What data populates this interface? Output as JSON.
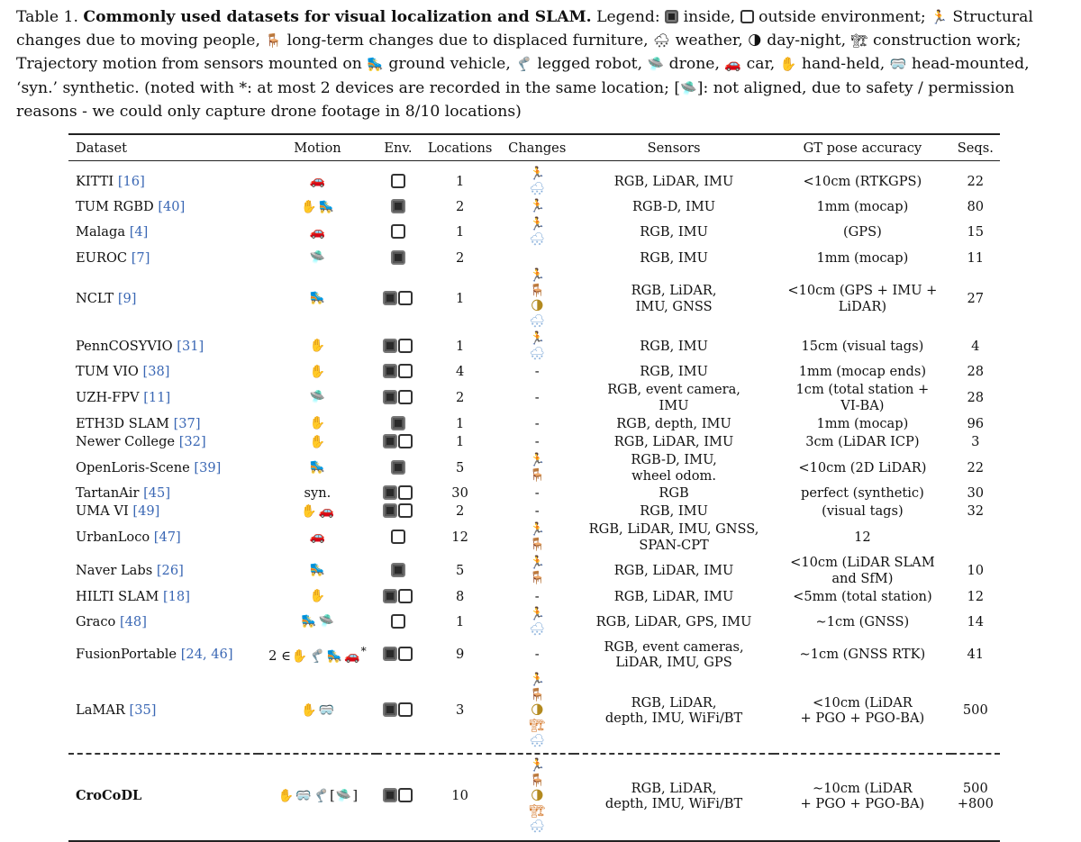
{
  "caption": {
    "label": "Table 1.",
    "title": "Commonly used datasets for visual localization and SLAM.",
    "legend_word": "Legend:",
    "inside": "inside,",
    "outside": "outside environment;",
    "people": "Structural changes due to moving people,",
    "furniture": "long-term changes due to displaced furniture,",
    "weather": "weather,",
    "daynight": "day-night,",
    "construction": "construction work; Trajectory motion from sensors mounted on",
    "vehicle": "ground vehicle,",
    "legged": "legged robot,",
    "drone": "drone,",
    "car": "car,",
    "handheld": "hand-held,",
    "headmounted": "head-mounted, ‘syn.’ synthetic. (noted with *: at most 2 devices are recorded in the same location; [",
    "tail": "]: not aligned, due to safety / permission reasons - we could only capture drone footage in 8/10 locations)"
  },
  "icons": {
    "car": "🚗",
    "hand": "✋",
    "vehicle": "🛼",
    "drone": "🛸",
    "legged": "🦿",
    "head": "🥽",
    "people": "🏃",
    "furniture": "🪑",
    "weather": "🌨",
    "daynight": "🌗",
    "construction": "🏗"
  },
  "headers": [
    "Dataset",
    "Motion",
    "Env.",
    "Locations",
    "Changes",
    "Sensors",
    "GT pose accuracy",
    "Seqs."
  ],
  "rows": [
    {
      "name": "KITTI",
      "ref": "[16]",
      "motion": "car",
      "env": "out",
      "loc": "1",
      "changes": "people weather",
      "sensors": [
        "RGB, LiDAR, IMU"
      ],
      "gt": [
        "<10cm (RTKGPS)"
      ],
      "seqs": [
        "22"
      ]
    },
    {
      "name": "TUM RGBD",
      "ref": "[40]",
      "motion": "hand vehicle",
      "env": "in",
      "loc": "2",
      "changes": "people",
      "sensors": [
        "RGB-D, IMU"
      ],
      "gt": [
        "1mm (mocap)"
      ],
      "seqs": [
        "80"
      ]
    },
    {
      "name": "Malaga",
      "ref": "[4]",
      "motion": "car",
      "env": "out",
      "loc": "1",
      "changes": "people weather",
      "sensors": [
        "RGB, IMU"
      ],
      "gt": [
        "(GPS)"
      ],
      "seqs": [
        "15"
      ]
    },
    {
      "name": "EUROC",
      "ref": "[7]",
      "motion": "drone",
      "env": "in",
      "loc": "2",
      "changes": "",
      "sensors": [
        "RGB, IMU"
      ],
      "gt": [
        "1mm (mocap)"
      ],
      "seqs": [
        "11"
      ]
    },
    {
      "name": "NCLT",
      "ref": "[9]",
      "motion": "vehicle",
      "env": "in out",
      "loc": "1",
      "changes": "people furniture daynight|weather",
      "sensors": [
        "RGB, LiDAR,",
        "IMU, GNSS"
      ],
      "gt": [
        "<10cm (GPS + IMU +",
        "LiDAR)"
      ],
      "seqs": [
        "27"
      ]
    },
    {
      "name": "PennCOSYVIO",
      "ref": "[31]",
      "motion": "hand",
      "env": "in out",
      "loc": "1",
      "changes": "people weather",
      "sensors": [
        "RGB, IMU"
      ],
      "gt": [
        "15cm (visual tags)"
      ],
      "seqs": [
        "4"
      ]
    },
    {
      "name": "TUM VIO",
      "ref": "[38]",
      "motion": "hand",
      "env": "in out",
      "loc": "4",
      "changes": "-",
      "sensors": [
        "RGB, IMU"
      ],
      "gt": [
        "1mm (mocap ends)"
      ],
      "seqs": [
        "28"
      ]
    },
    {
      "name": "UZH-FPV",
      "ref": "[11]",
      "motion": "drone",
      "env": "in out",
      "loc": "2",
      "changes": "-",
      "sensors": [
        "RGB, event camera,",
        "IMU"
      ],
      "gt": [
        "1cm (total station +",
        "VI-BA)"
      ],
      "seqs": [
        "28"
      ]
    },
    {
      "name": "ETH3D SLAM",
      "ref": "[37]",
      "motion": "hand",
      "env": "in",
      "loc": "1",
      "changes": "-",
      "sensors": [
        "RGB, depth, IMU"
      ],
      "gt": [
        "1mm (mocap)"
      ],
      "seqs": [
        "96"
      ]
    },
    {
      "name": "Newer College",
      "ref": "[32]",
      "motion": "hand",
      "env": "in out",
      "loc": "1",
      "changes": "-",
      "sensors": [
        "RGB, LiDAR, IMU"
      ],
      "gt": [
        "3cm (LiDAR ICP)"
      ],
      "seqs": [
        "3"
      ]
    },
    {
      "name": "OpenLoris-Scene",
      "ref": "[39]",
      "motion": "vehicle",
      "env": "in",
      "loc": "5",
      "changes": "people furniture",
      "sensors": [
        "RGB-D, IMU,",
        "wheel odom."
      ],
      "gt": [
        "<10cm (2D LiDAR)"
      ],
      "seqs": [
        "22"
      ]
    },
    {
      "name": "TartanAir",
      "ref": "[45]",
      "motion": "syn.",
      "env": "in out",
      "loc": "30",
      "changes": "-",
      "sensors": [
        "RGB"
      ],
      "gt": [
        "perfect (synthetic)"
      ],
      "seqs": [
        "30"
      ]
    },
    {
      "name": "UMA VI",
      "ref": "[49]",
      "motion": "hand car",
      "env": "in out",
      "loc": "2",
      "changes": "-",
      "sensors": [
        "RGB, IMU"
      ],
      "gt": [
        "(visual tags)"
      ],
      "seqs": [
        "32"
      ]
    },
    {
      "name": "UrbanLoco",
      "ref": "[47]",
      "motion": "car",
      "env": "out",
      "loc": "12",
      "changes": "people furniture",
      "sensors": [
        "RGB, LiDAR, IMU, GNSS,",
        "SPAN-CPT"
      ],
      "gt": [
        "12"
      ],
      "seqs": [
        ""
      ]
    },
    {
      "name": "Naver Labs",
      "ref": "[26]",
      "motion": "vehicle",
      "env": "in",
      "loc": "5",
      "changes": "people furniture",
      "sensors": [
        "RGB, LiDAR, IMU"
      ],
      "gt": [
        "<10cm (LiDAR SLAM",
        "and SfM)"
      ],
      "seqs": [
        "10"
      ]
    },
    {
      "name": "HILTI SLAM",
      "ref": "[18]",
      "motion": "hand",
      "env": "in out",
      "loc": "8",
      "changes": "-",
      "sensors": [
        "RGB, LiDAR, IMU"
      ],
      "gt": [
        "<5mm (total station)"
      ],
      "seqs": [
        "12"
      ]
    },
    {
      "name": "Graco",
      "ref": "[48]",
      "motion": "vehicle drone",
      "env": "out",
      "loc": "1",
      "changes": "people weather",
      "sensors": [
        "RGB, LiDAR, GPS, IMU"
      ],
      "gt": [
        "∼1cm (GNSS)"
      ],
      "seqs": [
        "14"
      ]
    },
    {
      "name": "FusionPortable",
      "ref": "[24, 46]",
      "motion": "fusion",
      "env": "in out",
      "loc": "9",
      "changes": "-",
      "sensors": [
        "RGB, event cameras,",
        "LiDAR, IMU, GPS"
      ],
      "gt": [
        "∼1cm (GNSS RTK)"
      ],
      "seqs": [
        "41"
      ]
    },
    {
      "name": "LaMAR",
      "ref": "[35]",
      "motion": "hand head",
      "env": "in out",
      "loc": "3",
      "changes": "people furniture daynight|construction weather",
      "sensors": [
        "RGB, LiDAR,",
        "depth, IMU, WiFi/BT"
      ],
      "gt": [
        "<10cm (LiDAR",
        "+ PGO + PGO-BA)"
      ],
      "seqs": [
        "500"
      ]
    }
  ],
  "ours": {
    "name": "CroCoDL",
    "motion": "ours",
    "env": "in out",
    "loc": "10",
    "changes": "people furniture daynight|construction weather",
    "sensors": [
      "RGB, LiDAR,",
      "depth, IMU, WiFi/BT"
    ],
    "gt": [
      "∼10cm (LiDAR",
      "+ PGO + PGO-BA)"
    ],
    "seqs": [
      "500",
      "+800"
    ]
  },
  "fusion_prefix": "2 ∈",
  "fusion_suffix": "*",
  "ours_bracket_open": "[",
  "ours_bracket_close": "]"
}
